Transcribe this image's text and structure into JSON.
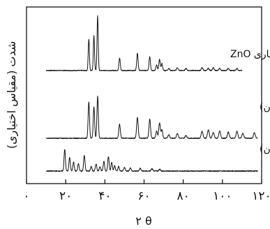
{
  "chart_data": {
    "type": "line",
    "xlabel": "۲ θ",
    "ylabel": "شدت (مقیاس اختیاری)",
    "xlim": [
      0,
      120
    ],
    "xticks": [
      {
        "value": 0,
        "label": "۰"
      },
      {
        "value": 20,
        "label": "۲۰"
      },
      {
        "value": 40,
        "label": "۴۰"
      },
      {
        "value": 60,
        "label": "۶۰"
      },
      {
        "value": 80,
        "label": "۸۰"
      },
      {
        "value": 100,
        "label": "۱۰۰"
      },
      {
        "value": 120,
        "label": "۱۲۰"
      }
    ],
    "series": [
      {
        "name": "تجاری ZnO",
        "x_range": [
          10,
          110
        ],
        "baseline": 0,
        "peaks": [
          {
            "x": 31.8,
            "h": 0.45,
            "w": 0.3
          },
          {
            "x": 34.4,
            "h": 0.5,
            "w": 0.3
          },
          {
            "x": 36.3,
            "h": 0.78,
            "w": 0.3
          },
          {
            "x": 47.5,
            "h": 0.18,
            "w": 0.35
          },
          {
            "x": 56.6,
            "h": 0.25,
            "w": 0.35
          },
          {
            "x": 62.9,
            "h": 0.2,
            "w": 0.35
          },
          {
            "x": 66.4,
            "h": 0.08,
            "w": 0.35
          },
          {
            "x": 67.9,
            "h": 0.16,
            "w": 0.35
          },
          {
            "x": 69.1,
            "h": 0.1,
            "w": 0.35
          },
          {
            "x": 72.6,
            "h": 0.03,
            "w": 0.4
          },
          {
            "x": 77.0,
            "h": 0.04,
            "w": 0.4
          },
          {
            "x": 81.4,
            "h": 0.03,
            "w": 0.4
          },
          {
            "x": 89.6,
            "h": 0.04,
            "w": 0.4
          },
          {
            "x": 92.8,
            "h": 0.03,
            "w": 0.4
          },
          {
            "x": 95.3,
            "h": 0.04,
            "w": 0.4
          },
          {
            "x": 98.6,
            "h": 0.03,
            "w": 0.4
          },
          {
            "x": 103.0,
            "h": 0.03,
            "w": 0.4
          },
          {
            "x": 107.4,
            "h": 0.03,
            "w": 0.4
          }
        ]
      },
      {
        "name": "نانو ZnO (بعد از کلسینه‌کردن)",
        "x_range": [
          10,
          118
        ],
        "baseline": 0,
        "peaks": [
          {
            "x": 31.8,
            "h": 0.52,
            "w": 0.35
          },
          {
            "x": 34.4,
            "h": 0.45,
            "w": 0.35
          },
          {
            "x": 36.3,
            "h": 0.6,
            "w": 0.35
          },
          {
            "x": 47.5,
            "h": 0.2,
            "w": 0.4
          },
          {
            "x": 56.6,
            "h": 0.3,
            "w": 0.4
          },
          {
            "x": 62.9,
            "h": 0.27,
            "w": 0.4
          },
          {
            "x": 66.4,
            "h": 0.1,
            "w": 0.4
          },
          {
            "x": 67.9,
            "h": 0.22,
            "w": 0.4
          },
          {
            "x": 69.1,
            "h": 0.12,
            "w": 0.4
          },
          {
            "x": 72.6,
            "h": 0.05,
            "w": 0.45
          },
          {
            "x": 77.0,
            "h": 0.07,
            "w": 0.45
          },
          {
            "x": 81.4,
            "h": 0.04,
            "w": 0.45
          },
          {
            "x": 89.6,
            "h": 0.1,
            "w": 0.45
          },
          {
            "x": 92.8,
            "h": 0.12,
            "w": 0.45
          },
          {
            "x": 95.3,
            "h": 0.08,
            "w": 0.45
          },
          {
            "x": 98.6,
            "h": 0.1,
            "w": 0.45
          },
          {
            "x": 103.0,
            "h": 0.09,
            "w": 0.45
          },
          {
            "x": 107.4,
            "h": 0.1,
            "w": 0.45
          },
          {
            "x": 110.4,
            "h": 0.07,
            "w": 0.45
          },
          {
            "x": 116.3,
            "h": 0.08,
            "w": 0.45
          }
        ]
      },
      {
        "name": "نانو ZnO (قبل از کلسینه‌کردن)",
        "x_range": [
          10,
          118
        ],
        "baseline": 0,
        "peaks": [
          {
            "x": 19.5,
            "h": 0.48,
            "w": 0.35
          },
          {
            "x": 22.0,
            "h": 0.3,
            "w": 0.35
          },
          {
            "x": 24.0,
            "h": 0.2,
            "w": 0.35
          },
          {
            "x": 26.5,
            "h": 0.16,
            "w": 0.35
          },
          {
            "x": 29.5,
            "h": 0.35,
            "w": 0.35
          },
          {
            "x": 33.0,
            "h": 0.1,
            "w": 0.35
          },
          {
            "x": 35.5,
            "h": 0.16,
            "w": 0.35
          },
          {
            "x": 37.5,
            "h": 0.1,
            "w": 0.35
          },
          {
            "x": 39.5,
            "h": 0.22,
            "w": 0.35
          },
          {
            "x": 41.8,
            "h": 0.32,
            "w": 0.35
          },
          {
            "x": 43.5,
            "h": 0.2,
            "w": 0.35
          },
          {
            "x": 45.0,
            "h": 0.12,
            "w": 0.35
          },
          {
            "x": 47.0,
            "h": 0.1,
            "w": 0.35
          },
          {
            "x": 50.0,
            "h": 0.08,
            "w": 0.4
          },
          {
            "x": 53.0,
            "h": 0.07,
            "w": 0.4
          },
          {
            "x": 58.0,
            "h": 0.06,
            "w": 0.4
          },
          {
            "x": 64.0,
            "h": 0.05,
            "w": 0.4
          },
          {
            "x": 68.0,
            "h": 0.04,
            "w": 0.4
          }
        ]
      }
    ]
  }
}
